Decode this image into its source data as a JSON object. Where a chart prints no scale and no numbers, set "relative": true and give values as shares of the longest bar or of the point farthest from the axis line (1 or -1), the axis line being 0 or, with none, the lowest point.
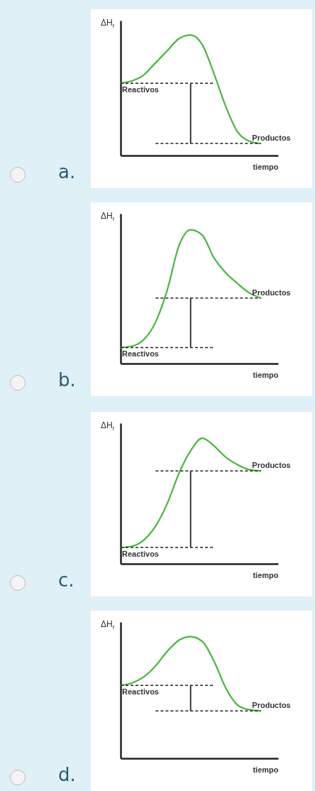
{
  "chart_data": [
    {
      "type": "line",
      "relative": true,
      "tick_labels": false,
      "xlabel": "tiempo",
      "ylabel": "ΔH$_{f}$",
      "annotations": [
        "a."
      ],
      "categories": [
        null,
        null,
        null,
        null,
        null,
        null,
        null,
        null,
        null,
        null,
        null,
        null,
        null
      ],
      "series": [
        {
          "color": "#45b83a",
          "values": [
            0.6,
            0.62,
            0.67,
            0.77,
            0.87,
            0.97,
            1.0,
            0.92,
            0.68,
            0.41,
            0.2,
            0.12,
            0.1
          ]
        }
      ],
      "ref_lines": [
        {
          "axis": "y",
          "value": 0.6,
          "label": "Reactivos",
          "color": "#222222",
          "line_style": "dashed"
        },
        {
          "axis": "y",
          "value": 0.1,
          "label": "Productos",
          "color": "#222222",
          "line_style": "dashed"
        }
      ]
    },
    {
      "type": "line",
      "relative": true,
      "tick_labels": false,
      "xlabel": "tiempo",
      "ylabel": "ΔH$_{f}$",
      "annotations": [
        "b."
      ],
      "categories": [
        null,
        null,
        null,
        null,
        null,
        null,
        null,
        null,
        null,
        null,
        null,
        null,
        null
      ],
      "series": [
        {
          "color": "#45b83a",
          "values": [
            0.12,
            0.13,
            0.18,
            0.31,
            0.55,
            0.88,
            1.0,
            0.96,
            0.79,
            0.68,
            0.6,
            0.53,
            0.49
          ]
        }
      ],
      "ref_lines": [
        {
          "axis": "y",
          "value": 0.12,
          "label": "Reactivos",
          "color": "#222222",
          "line_style": "dashed"
        },
        {
          "axis": "y",
          "value": 0.49,
          "label": "Productos",
          "color": "#222222",
          "line_style": "dashed"
        }
      ]
    },
    {
      "type": "line",
      "relative": true,
      "tick_labels": false,
      "xlabel": "tiempo",
      "ylabel": "ΔH$_{f}$",
      "annotations": [
        "c."
      ],
      "categories": [
        null,
        null,
        null,
        null,
        null,
        null,
        null,
        null,
        null,
        null,
        null,
        null,
        null
      ],
      "series": [
        {
          "color": "#45b83a",
          "values": [
            0.13,
            0.14,
            0.19,
            0.3,
            0.48,
            0.72,
            0.9,
            1.0,
            0.94,
            0.85,
            0.79,
            0.75,
            0.74
          ]
        }
      ],
      "ref_lines": [
        {
          "axis": "y",
          "value": 0.13,
          "label": "Reactivos",
          "color": "#222222",
          "line_style": "dashed"
        },
        {
          "axis": "y",
          "value": 0.74,
          "label": "Productos",
          "color": "#222222",
          "line_style": "dashed"
        }
      ]
    },
    {
      "type": "line",
      "relative": true,
      "tick_labels": false,
      "xlabel": "tiempo",
      "ylabel": "ΔH$_{f}$",
      "annotations": [
        "d."
      ],
      "categories": [
        null,
        null,
        null,
        null,
        null,
        null,
        null,
        null,
        null,
        null,
        null,
        null,
        null
      ],
      "series": [
        {
          "color": "#45b83a",
          "values": [
            0.6,
            0.62,
            0.67,
            0.76,
            0.88,
            0.97,
            1.0,
            0.96,
            0.8,
            0.58,
            0.44,
            0.4,
            0.39
          ]
        }
      ],
      "ref_lines": [
        {
          "axis": "y",
          "value": 0.6,
          "label": "Reactivos",
          "color": "#222222",
          "line_style": "dashed"
        },
        {
          "axis": "y",
          "value": 0.39,
          "label": "Productos",
          "color": "#222222",
          "line_style": "dashed"
        }
      ]
    }
  ]
}
